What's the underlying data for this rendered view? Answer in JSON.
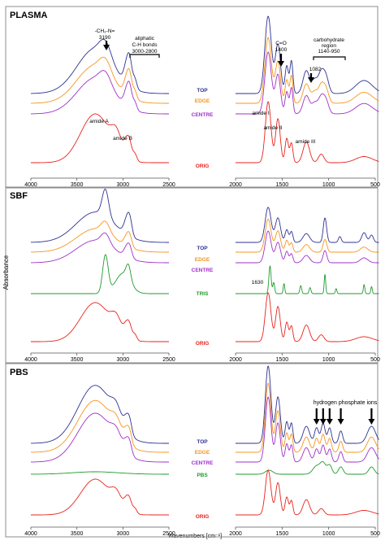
{
  "figure": {
    "ylabel": "Absorbance",
    "xlabel": "Wavenumbers [cm⁻¹]"
  },
  "chart_data": [
    {
      "type": "line",
      "title": "PLASMA",
      "xlim": [
        4000,
        500
      ],
      "x_break": [
        2500,
        2000
      ],
      "x_ticks": [
        "4000",
        "3500",
        "3000",
        "2500",
        "2000",
        "1500",
        "1000",
        "500"
      ],
      "colors": {
        "TOP": "#2e3192",
        "EDGE": "#f7941d",
        "CENTRE": "#a030c8",
        "ORIG": "#e8231c"
      },
      "series": [
        {
          "name": "TOP",
          "color": "#2e3192",
          "peaks": "plasma"
        },
        {
          "name": "EDGE",
          "color": "#f7941d",
          "peaks": "plasma"
        },
        {
          "name": "CENTRE",
          "color": "#a030c8",
          "peaks": "plasma"
        },
        {
          "name": "ORIG",
          "color": "#e8231c",
          "peaks": "protein"
        }
      ],
      "annotations": [
        {
          "text": "-CH₂-N=",
          "x": 3190
        },
        {
          "text": "3190",
          "x": 3190
        },
        {
          "text": "aliphatic",
          "x": 2900
        },
        {
          "text": "C-H bonds",
          "x": 2900
        },
        {
          "text": "3000-2800",
          "x": 2900
        },
        {
          "text": "C=O",
          "x": 1400
        },
        {
          "text": "1400",
          "x": 1400
        },
        {
          "text": "carbohydrate",
          "x": 1045
        },
        {
          "text": "region",
          "x": 1045
        },
        {
          "text": "1140-950",
          "x": 1045
        },
        {
          "text": "1082",
          "x": 1082
        },
        {
          "text": "amide A",
          "x": 3300
        },
        {
          "text": "amide B",
          "x": 3070
        },
        {
          "text": "amide I",
          "x": 1650
        },
        {
          "text": "amide II",
          "x": 1540
        },
        {
          "text": "amide III",
          "x": 1240
        }
      ]
    },
    {
      "type": "line",
      "title": "SBF",
      "xlim": [
        4000,
        500
      ],
      "x_break": [
        2500,
        2000
      ],
      "x_ticks": [
        "4000",
        "3500",
        "3000",
        "2500",
        "2000",
        "1500",
        "1000",
        "500"
      ],
      "series": [
        {
          "name": "TOP",
          "color": "#2e3192",
          "peaks": "sbf"
        },
        {
          "name": "EDGE",
          "color": "#f7941d",
          "peaks": "sbfmid"
        },
        {
          "name": "CENTRE",
          "color": "#a030c8",
          "peaks": "sbfmid"
        },
        {
          "name": "TRIS",
          "color": "#1f9a2e",
          "peaks": "tris"
        },
        {
          "name": "ORIG",
          "color": "#e8231c",
          "peaks": "protein"
        }
      ],
      "annotations": [
        {
          "text": "1630",
          "x": 1630
        }
      ]
    },
    {
      "type": "line",
      "title": "PBS",
      "xlim": [
        4000,
        500
      ],
      "x_break": [
        2500,
        2000
      ],
      "x_ticks": [
        "4000",
        "3500",
        "3000",
        "2500",
        "2000",
        "1500",
        "1000",
        "500"
      ],
      "series": [
        {
          "name": "TOP",
          "color": "#2e3192",
          "peaks": "pbs"
        },
        {
          "name": "EDGE",
          "color": "#f7941d",
          "peaks": "pbs"
        },
        {
          "name": "CENTRE",
          "color": "#a030c8",
          "peaks": "pbs"
        },
        {
          "name": "PBS",
          "color": "#1f9a2e",
          "peaks": "buffer"
        },
        {
          "name": "ORIG",
          "color": "#e8231c",
          "peaks": "protein"
        }
      ],
      "annotations": [
        {
          "text": "hydrogen phosphate ions",
          "x": 950
        }
      ],
      "arrows_at": [
        1130,
        1060,
        990,
        870,
        540
      ]
    }
  ]
}
